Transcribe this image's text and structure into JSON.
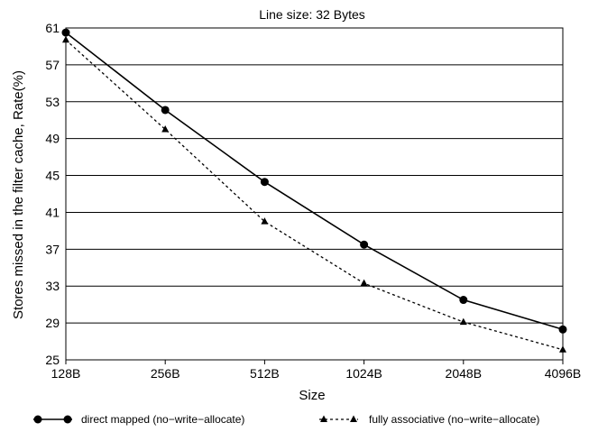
{
  "chart_data": {
    "type": "line",
    "title": "Line size: 32 Bytes",
    "xlabel": "Size",
    "ylabel": "Stores missed in the filter cache, Rate(%)",
    "categories": [
      "128B",
      "256B",
      "512B",
      "1024B",
      "2048B",
      "4096B"
    ],
    "ylim": [
      25,
      61
    ],
    "yticks": [
      25,
      29,
      33,
      37,
      41,
      45,
      49,
      53,
      57,
      61
    ],
    "grid": "horizontal",
    "legend_position": "bottom",
    "series": [
      {
        "name": "direct mapped (no−write−allocate)",
        "values": [
          60.5,
          52.1,
          44.3,
          37.5,
          31.5,
          28.3
        ],
        "marker": "circle",
        "line_style": "solid",
        "color": "#000000"
      },
      {
        "name": "fully associative (no−write−allocate)",
        "values": [
          59.7,
          50.0,
          40.0,
          33.3,
          29.1,
          26.1
        ],
        "marker": "triangle",
        "line_style": "dashed",
        "color": "#000000"
      }
    ]
  }
}
